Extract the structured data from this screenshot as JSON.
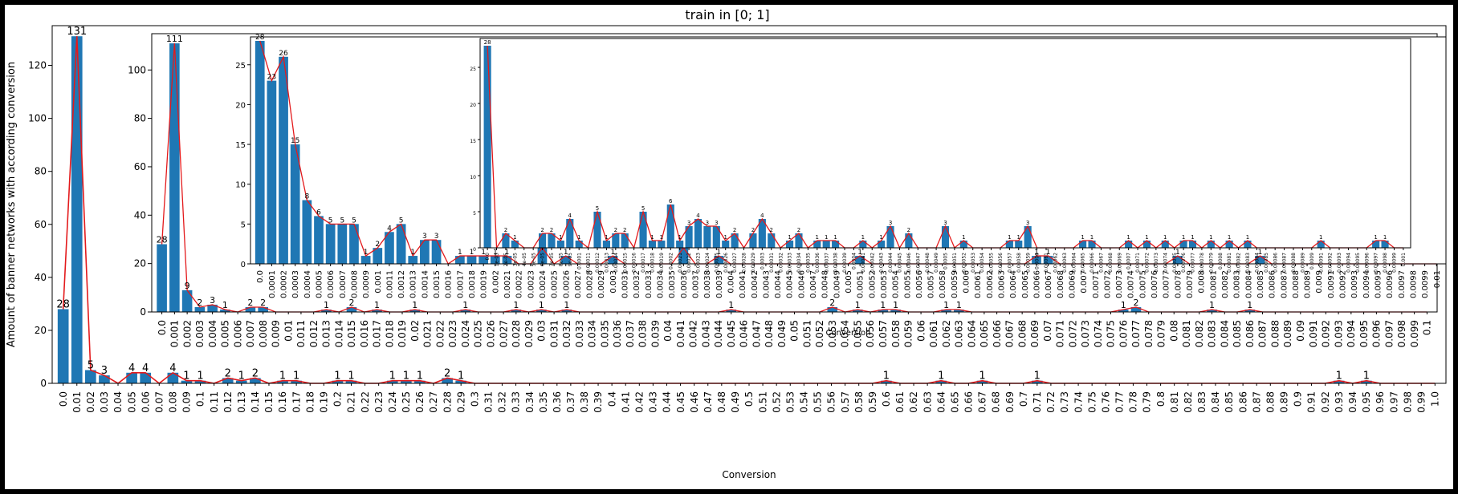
{
  "figure": {
    "title": "train in [0; 1]"
  },
  "chart_data": [
    {
      "type": "bar",
      "title": "",
      "xlabel": "Conversion",
      "ylabel": "Amount of banner networks with according conversion",
      "ylim": [
        0,
        135
      ],
      "yticks": [
        0,
        20,
        40,
        60,
        80,
        100,
        120
      ],
      "decimals": 2,
      "start": 0,
      "step": 0.01,
      "count": 101,
      "bar_color": "#1f77b4",
      "line_color": "#e31a1c",
      "grid": false,
      "values_nonzero": {
        "0": 28,
        "1": 131,
        "2": 5,
        "3": 3,
        "5": 4,
        "6": 4,
        "8": 4,
        "9": 1,
        "10": 1,
        "12": 2,
        "13": 1,
        "14": 2,
        "16": 1,
        "17": 1,
        "20": 1,
        "21": 1,
        "24": 1,
        "25": 1,
        "26": 1,
        "28": 2,
        "29": 1,
        "60": 1,
        "64": 1,
        "67": 1,
        "71": 1,
        "93": 1,
        "95": 1
      }
    },
    {
      "type": "bar",
      "title": "",
      "xlabel": "",
      "ylabel": "",
      "ylim": [
        0,
        115
      ],
      "yticks": [
        0,
        20,
        40,
        60,
        80,
        100
      ],
      "decimals": 3,
      "start": 0,
      "step": 0.001,
      "count": 101,
      "bar_color": "#1f77b4",
      "line_color": "#e31a1c",
      "grid": false,
      "values_nonzero": {
        "0": 28,
        "1": 111,
        "2": 9,
        "3": 2,
        "4": 3,
        "5": 1,
        "7": 2,
        "8": 2,
        "13": 1,
        "15": 2,
        "17": 1,
        "20": 1,
        "24": 1,
        "28": 1,
        "30": 1,
        "32": 1,
        "45": 1,
        "53": 2,
        "55": 1,
        "57": 1,
        "58": 1,
        "62": 1,
        "63": 1,
        "76": 1,
        "77": 2,
        "83": 1,
        "86": 1
      }
    },
    {
      "type": "bar",
      "title": "",
      "xlabel": "Conversion",
      "ylabel": "",
      "ylim": [
        0,
        28.5
      ],
      "yticks": [
        0,
        5,
        10,
        15,
        20,
        25
      ],
      "decimals": 4,
      "start": 0,
      "step": 0.0001,
      "count": 101,
      "bar_color": "#1f77b4",
      "line_color": "#e31a1c",
      "grid": false,
      "values_nonzero": {
        "0": 28,
        "1": 23,
        "2": 26,
        "3": 15,
        "4": 8,
        "5": 6,
        "6": 5,
        "7": 5,
        "8": 5,
        "9": 1,
        "10": 2,
        "11": 4,
        "12": 5,
        "13": 1,
        "14": 3,
        "15": 3,
        "17": 1,
        "18": 1,
        "19": 1,
        "20": 1,
        "21": 1,
        "24": 2,
        "26": 1,
        "30": 1,
        "36": 2,
        "39": 1,
        "51": 1,
        "66": 1,
        "67": 1,
        "78": 1,
        "85": 1
      }
    },
    {
      "type": "bar",
      "title": "",
      "xlabel": "",
      "ylabel": "",
      "ylim": [
        0,
        29
      ],
      "yticks": [
        0,
        5,
        10,
        15,
        20,
        25
      ],
      "decimals": 5,
      "start": 0,
      "step": 1e-05,
      "count": 101,
      "bar_color": "#1f77b4",
      "line_color": "#e31a1c",
      "grid": false,
      "values_nonzero": {
        "0": 28,
        "2": 2,
        "3": 1,
        "6": 2,
        "7": 2,
        "8": 1,
        "9": 4,
        "10": 1,
        "12": 5,
        "13": 1,
        "14": 2,
        "15": 2,
        "17": 5,
        "18": 1,
        "19": 1,
        "20": 6,
        "21": 1,
        "22": 3,
        "23": 4,
        "24": 3,
        "25": 3,
        "26": 1,
        "27": 2,
        "29": 2,
        "30": 4,
        "31": 2,
        "33": 1,
        "34": 2,
        "36": 1,
        "37": 1,
        "38": 1,
        "41": 1,
        "43": 1,
        "44": 3,
        "46": 2,
        "50": 3,
        "52": 1,
        "57": 1,
        "58": 1,
        "59": 3,
        "65": 1,
        "66": 1,
        "70": 1,
        "72": 1,
        "74": 1,
        "76": 1,
        "77": 1,
        "79": 1,
        "81": 1,
        "83": 1,
        "91": 1,
        "97": 1,
        "98": 1
      }
    }
  ]
}
